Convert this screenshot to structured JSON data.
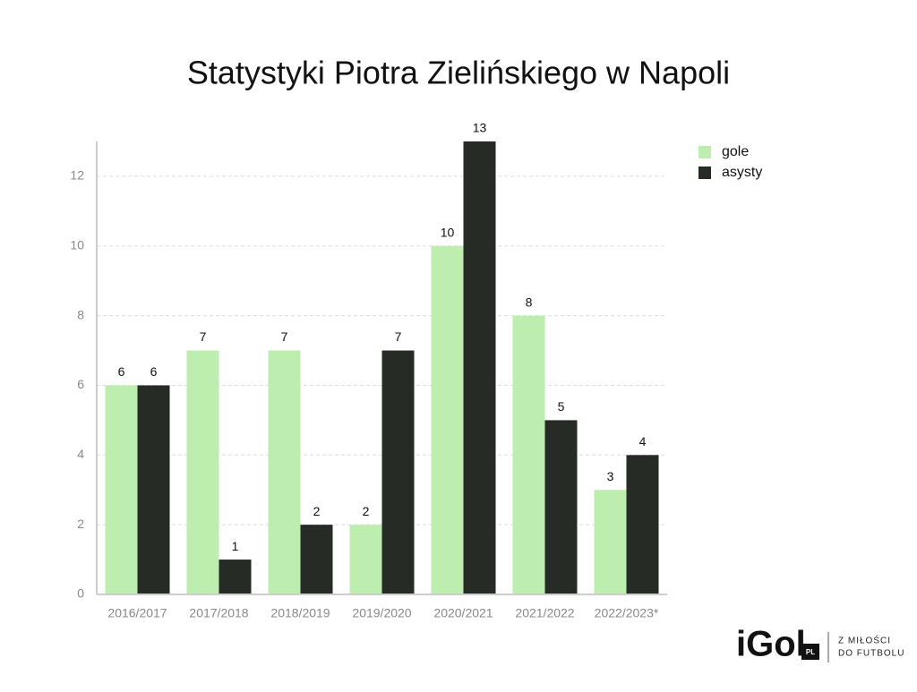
{
  "chart_data": {
    "type": "bar",
    "title": "Statystyki Piotra Zielińskiego w Napoli",
    "categories": [
      "2016/2017",
      "2017/2018",
      "2018/2019",
      "2019/2020",
      "2020/2021",
      "2021/2022",
      "2022/2023*"
    ],
    "series": [
      {
        "name": "gole",
        "color": "#bdeeb0",
        "values": [
          6,
          7,
          7,
          2,
          10,
          8,
          3
        ]
      },
      {
        "name": "asysty",
        "color": "#262b26",
        "values": [
          6,
          1,
          2,
          7,
          13,
          5,
          4
        ]
      }
    ],
    "ylim": [
      0,
      13
    ],
    "yticks": [
      0,
      2,
      4,
      6,
      8,
      10,
      12
    ],
    "grid": true,
    "legend": "right"
  },
  "logo": {
    "brand": "iGol",
    "suffix": "PL",
    "line1": "Z MIŁOŚCI",
    "line2": "DO FUTBOLU"
  }
}
